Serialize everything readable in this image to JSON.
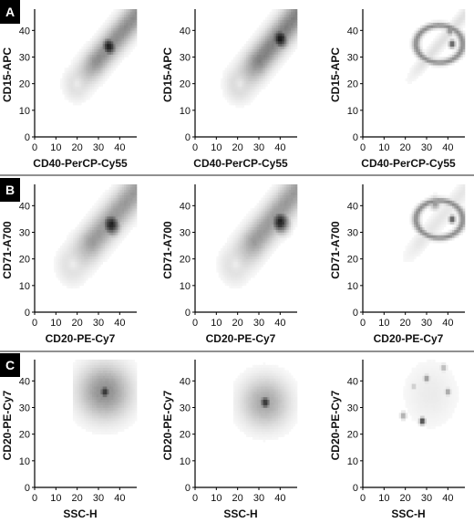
{
  "panels": [
    {
      "letter": "A"
    },
    {
      "letter": "B"
    },
    {
      "letter": "C"
    }
  ],
  "chart_data": [
    {
      "type": "heatmap",
      "panel": "A",
      "xlabel": "CD40-PerCP-Cy55",
      "ylabel": "CD15-APC",
      "xlim": [
        0,
        48
      ],
      "ylim": [
        0,
        48
      ],
      "xticks": [
        0,
        10,
        20,
        30,
        40
      ],
      "yticks": [
        0,
        10,
        20,
        30,
        40
      ],
      "grid": false,
      "density": {
        "shape": "diagonal",
        "center": [
          35,
          34
        ],
        "from": [
          20,
          20
        ],
        "to": [
          48,
          46
        ],
        "width": 2.4,
        "peak": 0.92,
        "halo": 0.45,
        "fade": 18
      }
    },
    {
      "type": "heatmap",
      "panel": "A",
      "xlabel": "CD40-PerCP-Cy55",
      "ylabel": "CD15-APC",
      "xlim": [
        0,
        48
      ],
      "ylim": [
        0,
        48
      ],
      "xticks": [
        0,
        10,
        20,
        30,
        40
      ],
      "yticks": [
        0,
        10,
        20,
        30,
        40
      ],
      "grid": false,
      "density": {
        "shape": "diagonal",
        "center": [
          40,
          37
        ],
        "from": [
          21,
          20
        ],
        "to": [
          48,
          46
        ],
        "width": 2.6,
        "peak": 0.95,
        "halo": 0.5,
        "fade": 20
      }
    },
    {
      "type": "heatmap",
      "panel": "A",
      "xlabel": "CD40-PerCP-Cy55",
      "ylabel": "CD15-APC",
      "xlim": [
        0,
        48
      ],
      "ylim": [
        0,
        48
      ],
      "xticks": [
        0,
        10,
        20,
        30,
        40
      ],
      "yticks": [
        0,
        10,
        20,
        30,
        40
      ],
      "grid": false,
      "density": {
        "shape": "loop",
        "center": [
          41,
          40
        ],
        "from": [
          20,
          20
        ],
        "to": [
          48,
          46
        ],
        "width": 1.2,
        "peak": 1.0,
        "halo": 0.25,
        "fade": 30
      }
    },
    {
      "type": "heatmap",
      "panel": "B",
      "xlabel": "CD20-PE-Cy7",
      "ylabel": "CD71-A700",
      "xlim": [
        0,
        48
      ],
      "ylim": [
        0,
        48
      ],
      "xticks": [
        0,
        10,
        20,
        30,
        40
      ],
      "yticks": [
        0,
        10,
        20,
        30,
        40
      ],
      "grid": false,
      "density": {
        "shape": "diagonal",
        "center": [
          36,
          33
        ],
        "from": [
          18,
          18
        ],
        "to": [
          48,
          46
        ],
        "width": 2.8,
        "peak": 0.9,
        "halo": 0.4,
        "fade": 16
      }
    },
    {
      "type": "heatmap",
      "panel": "B",
      "xlabel": "CD20-PE-Cy7",
      "ylabel": "CD71-A700",
      "xlim": [
        0,
        48
      ],
      "ylim": [
        0,
        48
      ],
      "xticks": [
        0,
        10,
        20,
        30,
        40
      ],
      "yticks": [
        0,
        10,
        20,
        30,
        40
      ],
      "grid": false,
      "density": {
        "shape": "diagonal",
        "center": [
          40,
          34
        ],
        "from": [
          19,
          18
        ],
        "to": [
          48,
          46
        ],
        "width": 2.8,
        "peak": 0.9,
        "halo": 0.4,
        "fade": 18
      }
    },
    {
      "type": "heatmap",
      "panel": "B",
      "xlabel": "CD20-PE-Cy7",
      "ylabel": "CD71-A700",
      "xlim": [
        0,
        48
      ],
      "ylim": [
        0,
        48
      ],
      "xticks": [
        0,
        10,
        20,
        30,
        40
      ],
      "yticks": [
        0,
        10,
        20,
        30,
        40
      ],
      "grid": false,
      "density": {
        "shape": "loop",
        "center": [
          34,
          41
        ],
        "from": [
          18,
          18
        ],
        "to": [
          48,
          46
        ],
        "width": 1.6,
        "peak": 0.85,
        "halo": 0.2,
        "fade": 30
      }
    },
    {
      "type": "heatmap",
      "panel": "C",
      "xlabel": "SSC-H",
      "ylabel": "CD20-PE-Cy7",
      "xlim": [
        0,
        48
      ],
      "ylim": [
        0,
        48
      ],
      "xticks": [
        0,
        10,
        20,
        30,
        40
      ],
      "yticks": [
        0,
        10,
        20,
        30,
        40
      ],
      "grid": false,
      "density": {
        "shape": "blob",
        "center": [
          33,
          36
        ],
        "from": [
          18,
          22
        ],
        "to": [
          48,
          46
        ],
        "width": 7,
        "peak": 0.85,
        "halo": 0.45,
        "fade": 12
      }
    },
    {
      "type": "heatmap",
      "panel": "C",
      "xlabel": "SSC-H",
      "ylabel": "CD20-PE-Cy7",
      "xlim": [
        0,
        48
      ],
      "ylim": [
        0,
        48
      ],
      "xticks": [
        0,
        10,
        20,
        30,
        40
      ],
      "yticks": [
        0,
        10,
        20,
        30,
        40
      ],
      "grid": false,
      "density": {
        "shape": "blob",
        "center": [
          33,
          32
        ],
        "from": [
          18,
          22
        ],
        "to": [
          46,
          44
        ],
        "width": 6.5,
        "peak": 0.85,
        "halo": 0.35,
        "fade": 12
      }
    },
    {
      "type": "heatmap",
      "panel": "C",
      "xlabel": "SSC-H",
      "ylabel": "CD20-PE-Cy7",
      "xlim": [
        0,
        48
      ],
      "ylim": [
        0,
        48
      ],
      "xticks": [
        0,
        10,
        20,
        30,
        40
      ],
      "yticks": [
        0,
        10,
        20,
        30,
        40
      ],
      "grid": false,
      "density": {
        "shape": "sparse",
        "center": [
          28,
          25
        ],
        "from": [
          20,
          20
        ],
        "to": [
          46,
          46
        ],
        "width": 1.5,
        "peak": 0.9,
        "halo": 0.15,
        "fade": 30
      }
    }
  ]
}
